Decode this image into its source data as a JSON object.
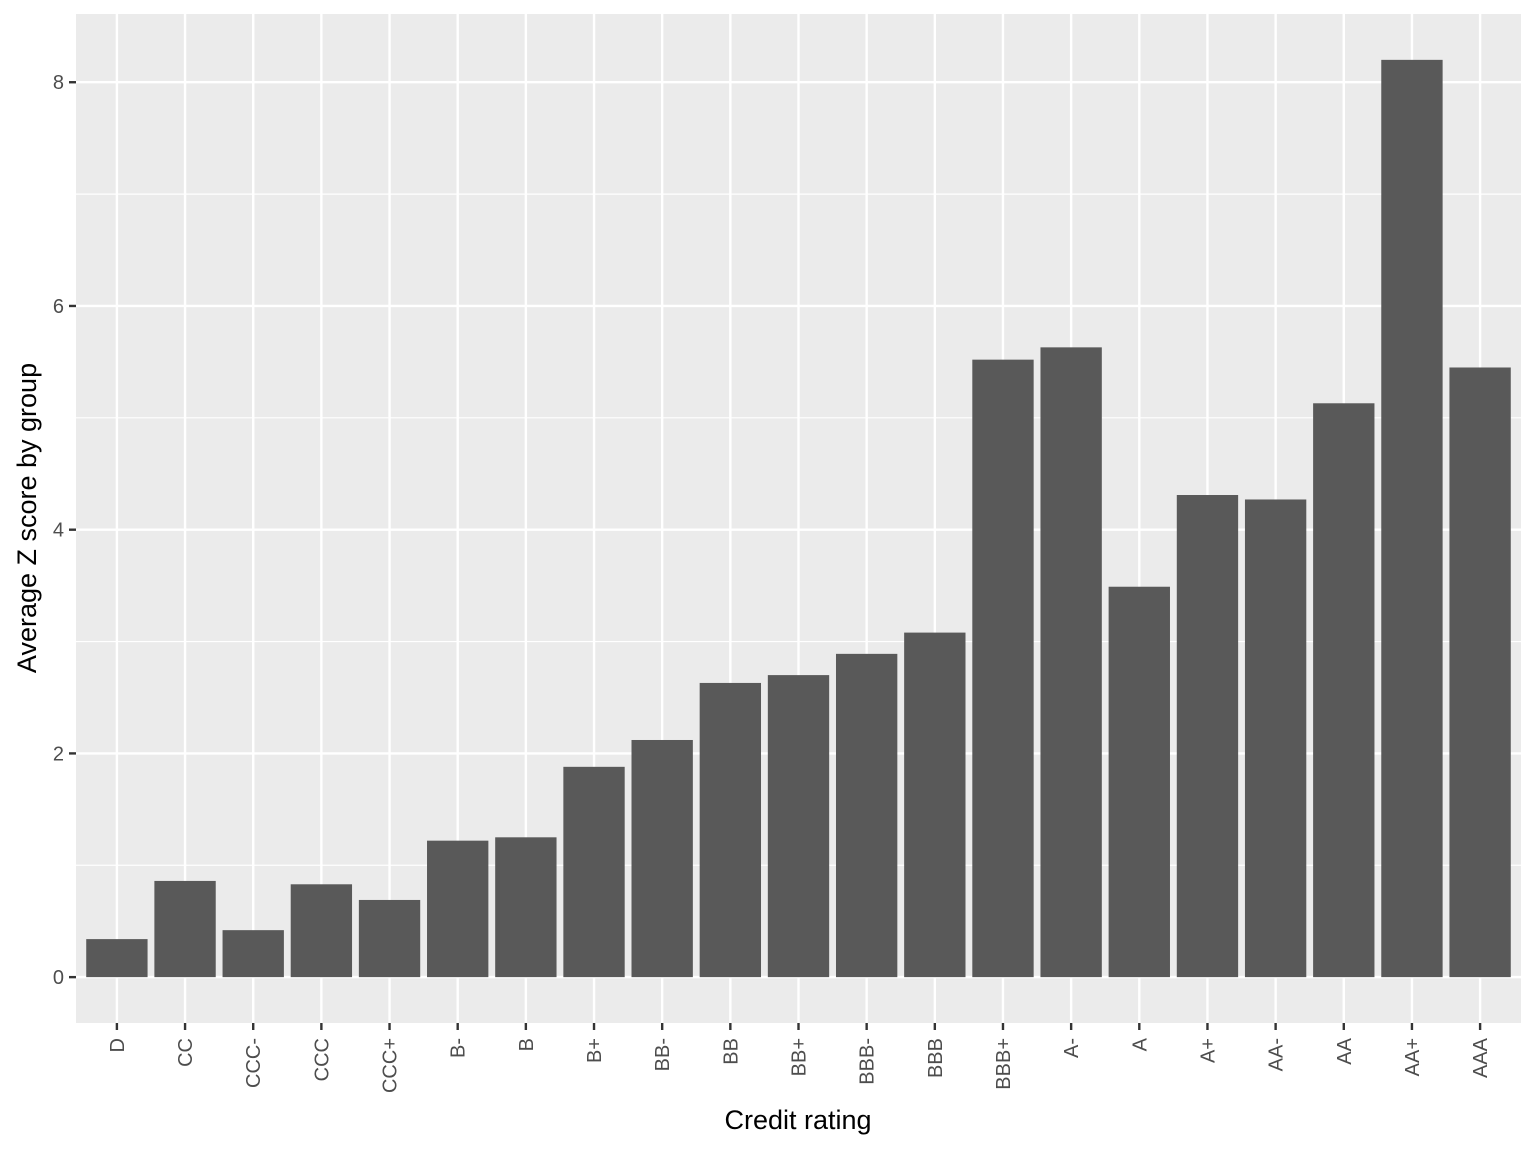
{
  "chart_data": {
    "type": "bar",
    "title": "",
    "xlabel": "Credit rating",
    "ylabel": "Average Z score by group",
    "categories": [
      "D",
      "CC",
      "CCC-",
      "CCC",
      "CCC+",
      "B-",
      "B",
      "B+",
      "BB-",
      "BB",
      "BB+",
      "BBB-",
      "BBB",
      "BBB+",
      "A-",
      "A",
      "A+",
      "AA-",
      "AA",
      "AA+",
      "AAA"
    ],
    "values": [
      0.34,
      0.86,
      0.42,
      0.83,
      0.69,
      1.22,
      1.25,
      1.88,
      2.12,
      2.63,
      2.7,
      2.89,
      3.08,
      5.52,
      5.63,
      3.49,
      4.31,
      4.27,
      5.13,
      8.2,
      5.45
    ],
    "ylim": [
      -0.41,
      8.61
    ],
    "yticks": [
      0,
      2,
      4,
      6,
      8
    ],
    "grid": true,
    "legend": "none",
    "colors": {
      "panel": "#ebebeb",
      "grid_major": "#ffffff",
      "bar": "#595959",
      "tick": "#333333",
      "tick_text": "#4d4d4d"
    }
  }
}
